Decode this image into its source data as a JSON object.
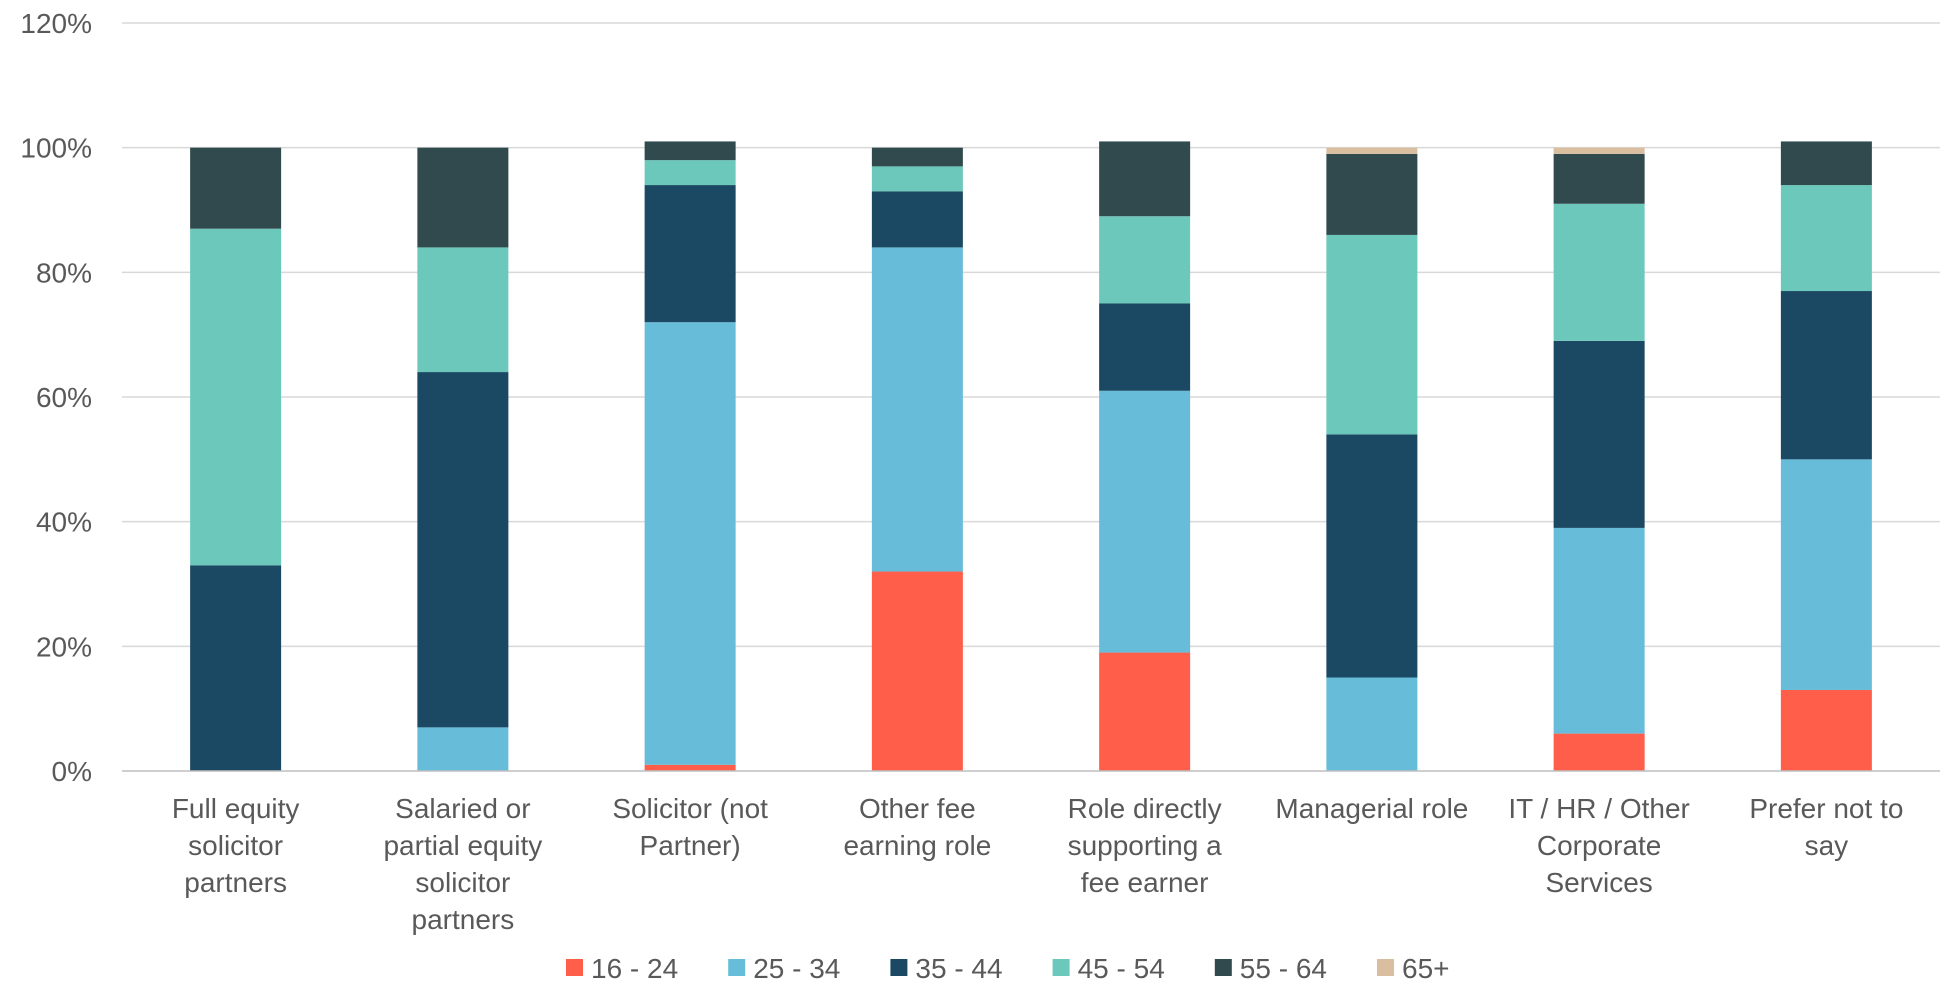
{
  "chart_data": {
    "type": "bar",
    "stacked": true,
    "title": "",
    "xlabel": "",
    "ylabel": "",
    "ylim": [
      0,
      120
    ],
    "y_ticks": [
      "0%",
      "20%",
      "40%",
      "60%",
      "80%",
      "100%",
      "120%"
    ],
    "grid": true,
    "legend_position": "bottom",
    "categories": [
      "Full equity solicitor partners",
      "Salaried or partial equity solicitor partners",
      "Solicitor (not Partner)",
      "Other fee earning role",
      "Role directly supporting a fee earner",
      "Managerial role",
      "IT / HR / Other Corporate Services",
      "Prefer not to say"
    ],
    "category_lines": [
      [
        "Full equity",
        "solicitor",
        "partners"
      ],
      [
        "Salaried or",
        "partial equity",
        "solicitor",
        "partners"
      ],
      [
        "Solicitor (not",
        "Partner)"
      ],
      [
        "Other fee",
        "earning role"
      ],
      [
        "Role directly",
        "supporting a",
        "fee earner"
      ],
      [
        "Managerial role"
      ],
      [
        "IT / HR / Other",
        "Corporate",
        "Services"
      ],
      [
        "Prefer not to",
        "say"
      ]
    ],
    "series": [
      {
        "name": "16 - 24",
        "color": "#FF5E4A",
        "values": [
          0,
          0,
          1,
          32,
          19,
          0,
          6,
          13
        ]
      },
      {
        "name": "25 - 34",
        "color": "#67BCDA",
        "values": [
          0,
          7,
          71,
          52,
          42,
          15,
          33,
          37
        ]
      },
      {
        "name": "35 - 44",
        "color": "#1B4862",
        "values": [
          33,
          57,
          22,
          9,
          14,
          39,
          30,
          27
        ]
      },
      {
        "name": "45 - 54",
        "color": "#6CC8BB",
        "values": [
          54,
          20,
          4,
          4,
          14,
          32,
          22,
          17
        ]
      },
      {
        "name": "55 - 64",
        "color": "#314A4D",
        "values": [
          13,
          16,
          3,
          3,
          12,
          13,
          8,
          7
        ]
      },
      {
        "name": "65+",
        "color": "#D9BEA0",
        "values": [
          0,
          0,
          0,
          0,
          0,
          1,
          1,
          0
        ]
      }
    ]
  }
}
